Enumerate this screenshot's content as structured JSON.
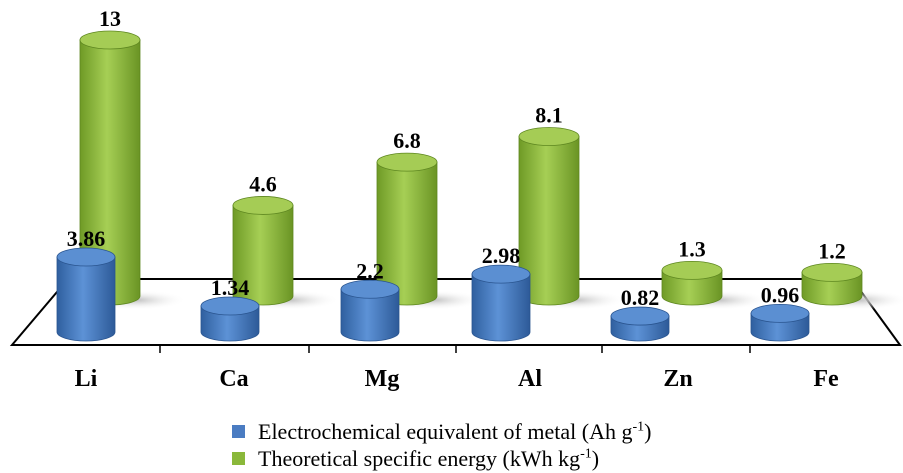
{
  "chart_data": {
    "type": "bar",
    "categories": [
      "Li",
      "Ca",
      "Mg",
      "Al",
      "Zn",
      "Fe"
    ],
    "series": [
      {
        "name": "Electrochemical equivalent of metal (Ah g-1)",
        "legend_text": "Electrochemical equivalent of metal (Ah g",
        "legend_sup": "-1",
        "legend_tail": ")",
        "color": "#4a7cc2",
        "values": [
          3.86,
          1.34,
          2.2,
          2.98,
          0.82,
          0.96
        ],
        "labels": [
          "3.86",
          "1.34",
          "2.2",
          "2.98",
          "0.82",
          "0.96"
        ]
      },
      {
        "name": "Theoretical specific energy (kWh kg-1)",
        "legend_text": "Theoretical specific energy (kWh kg",
        "legend_sup": "-1",
        "legend_tail": ")",
        "color": "#8ab83a",
        "values": [
          13,
          4.6,
          6.8,
          8.1,
          1.3,
          1.2
        ],
        "labels": [
          "13",
          "4.6",
          "6.8",
          "8.1",
          "1.3",
          "1.2"
        ]
      }
    ],
    "style": "3d-cylinder",
    "legend_position": "bottom"
  }
}
